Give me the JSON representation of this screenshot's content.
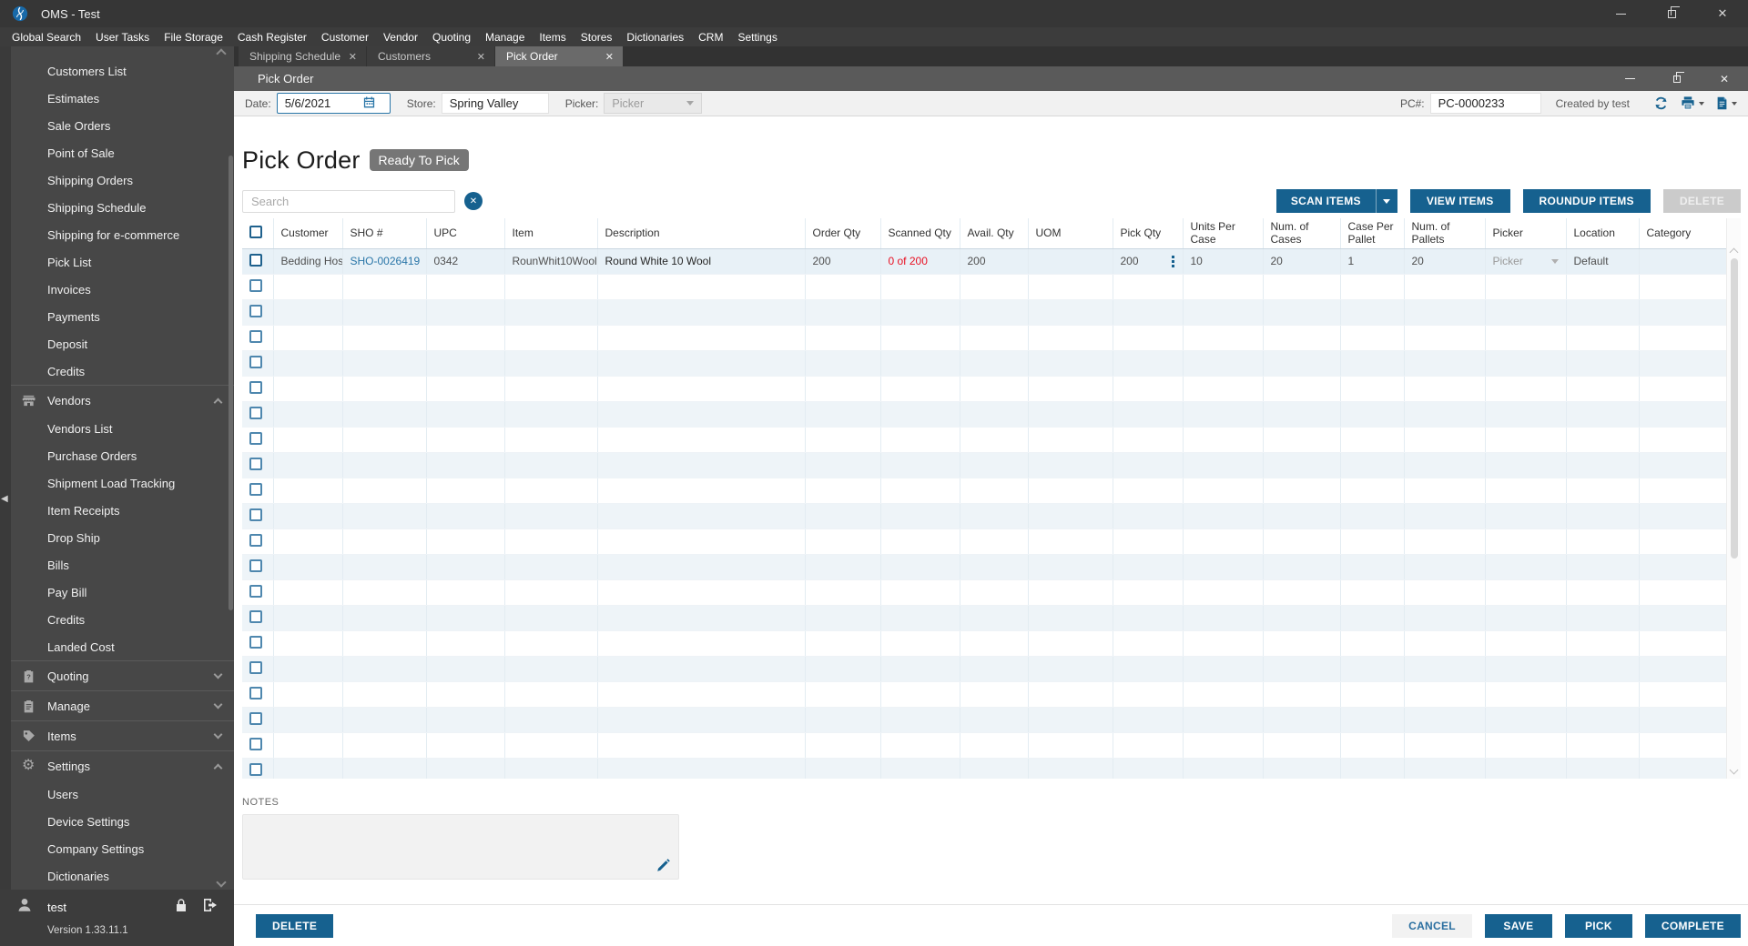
{
  "colors": {
    "accent": "#16618f",
    "link": "#2a76a8",
    "alert_red": "#e81123",
    "badge_gray": "#767676"
  },
  "titlebar": {
    "title": "OMS - Test"
  },
  "menubar": {
    "items": [
      "Global Search",
      "User Tasks",
      "File Storage",
      "Cash Register",
      "Customer",
      "Vendor",
      "Quoting",
      "Manage",
      "Items",
      "Stores",
      "Dictionaries",
      "CRM",
      "Settings"
    ]
  },
  "tabs": [
    {
      "label": "Shipping Schedule",
      "active": false
    },
    {
      "label": "Customers",
      "active": false
    },
    {
      "label": "Pick Order",
      "active": true
    }
  ],
  "sidebar": {
    "entries": [
      {
        "type": "item",
        "label": "Customers List"
      },
      {
        "type": "item",
        "label": "Estimates"
      },
      {
        "type": "item",
        "label": "Sale Orders"
      },
      {
        "type": "item",
        "label": "Point of Sale"
      },
      {
        "type": "item",
        "label": "Shipping Orders"
      },
      {
        "type": "item",
        "label": "Shipping Schedule"
      },
      {
        "type": "item",
        "label": "Shipping for e-commerce"
      },
      {
        "type": "item",
        "label": "Pick List"
      },
      {
        "type": "item",
        "label": "Invoices"
      },
      {
        "type": "item",
        "label": "Payments"
      },
      {
        "type": "item",
        "label": "Deposit"
      },
      {
        "type": "item",
        "label": "Credits"
      },
      {
        "type": "section",
        "label": "Vendors",
        "icon": "store-icon",
        "state": "expanded"
      },
      {
        "type": "item",
        "label": "Vendors List"
      },
      {
        "type": "item",
        "label": "Purchase Orders"
      },
      {
        "type": "item",
        "label": "Shipment Load Tracking"
      },
      {
        "type": "item",
        "label": "Item Receipts"
      },
      {
        "type": "item",
        "label": "Drop Ship"
      },
      {
        "type": "item",
        "label": "Bills"
      },
      {
        "type": "item",
        "label": "Pay Bill"
      },
      {
        "type": "item",
        "label": "Credits"
      },
      {
        "type": "item",
        "label": "Landed Cost"
      },
      {
        "type": "section",
        "label": "Quoting",
        "icon": "clipboard-question-icon",
        "state": "collapsed"
      },
      {
        "type": "section",
        "label": "Manage",
        "icon": "clipboard-icon",
        "state": "collapsed"
      },
      {
        "type": "section",
        "label": "Items",
        "icon": "tag-icon",
        "state": "collapsed"
      },
      {
        "type": "section",
        "label": "Settings",
        "icon": "gear-icon",
        "state": "expanded"
      },
      {
        "type": "item",
        "label": "Users"
      },
      {
        "type": "item",
        "label": "Device Settings"
      },
      {
        "type": "item",
        "label": "Company Settings"
      },
      {
        "type": "item",
        "label": "Dictionaries"
      }
    ],
    "user": {
      "name": "test",
      "version": "Version 1.33.11.1"
    }
  },
  "window": {
    "title": "Pick Order",
    "toolbar": {
      "date_label": "Date:",
      "date_value": "5/6/2021",
      "store_label": "Store:",
      "store_value": "Spring Valley",
      "picker_label": "Picker:",
      "picker_placeholder": "Picker",
      "pc_label": "PC#:",
      "pc_value": "PC-0000233",
      "created_by": "Created by test"
    },
    "heading": "Pick Order",
    "status_badge": "Ready To Pick",
    "search_placeholder": "Search",
    "actions": {
      "scan": "SCAN ITEMS",
      "view": "VIEW ITEMS",
      "roundup": "ROUNDUP ITEMS",
      "delete": "DELETE"
    },
    "table": {
      "columns": [
        {
          "key": "select",
          "label": ""
        },
        {
          "key": "customer",
          "label": "Customer"
        },
        {
          "key": "sho",
          "label": "SHO #"
        },
        {
          "key": "upc",
          "label": "UPC"
        },
        {
          "key": "item",
          "label": "Item"
        },
        {
          "key": "description",
          "label": "Description"
        },
        {
          "key": "order_qty",
          "label": "Order Qty"
        },
        {
          "key": "scanned_qty",
          "label": "Scanned Qty"
        },
        {
          "key": "avail_qty",
          "label": "Avail. Qty"
        },
        {
          "key": "uom",
          "label": "UOM"
        },
        {
          "key": "pick_qty",
          "label": "Pick Qty"
        },
        {
          "key": "units_per_case",
          "label": "Units Per Case"
        },
        {
          "key": "num_cases",
          "label": "Num. of Cases"
        },
        {
          "key": "case_per_pallet",
          "label": "Case Per Pallet"
        },
        {
          "key": "num_pallets",
          "label": "Num. of Pallets"
        },
        {
          "key": "picker",
          "label": "Picker"
        },
        {
          "key": "location",
          "label": "Location"
        },
        {
          "key": "category",
          "label": "Category"
        }
      ],
      "row": {
        "customer": "Bedding Hosp",
        "sho": "SHO-0026419",
        "upc": "0342",
        "item": "RounWhit10Wool",
        "description": "Round White 10 Wool",
        "order_qty": "200",
        "scanned_qty": "0 of 200",
        "avail_qty": "200",
        "uom": "",
        "pick_qty": "200",
        "units_per_case": "10",
        "num_cases": "20",
        "case_per_pallet": "1",
        "num_pallets": "20",
        "picker": "Picker",
        "location": "Default",
        "category": ""
      },
      "empty_rows": 20
    },
    "notes_label": "NOTES",
    "footer": {
      "delete": "DELETE",
      "cancel": "CANCEL",
      "save": "SAVE",
      "pick": "PICK",
      "complete": "COMPLETE"
    }
  }
}
